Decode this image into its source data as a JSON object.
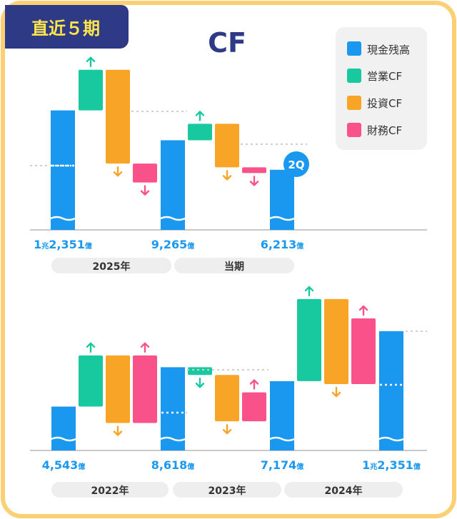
{
  "badge": "直近５期",
  "title": "CF",
  "legend": [
    {
      "label": "現金残高",
      "color": "#1a98f0"
    },
    {
      "label": "営業CF",
      "color": "#18c9a0"
    },
    {
      "label": "投資CF",
      "color": "#f8a427"
    },
    {
      "label": "財務CF",
      "color": "#f9528a"
    }
  ],
  "colors": {
    "frame": "#fbcf74",
    "badge_bg": "#2e3a86",
    "badge_text": "#ffe74b",
    "title": "#2e3a86",
    "value_text": "#1a98f0",
    "axis": "#c8c8c8",
    "pill_bg": "#eeeeee",
    "pill_text": "#333333",
    "legend_bg": "#f1f1f1"
  },
  "chart_data": [
    {
      "type": "waterfall",
      "title": "",
      "unit": "億",
      "quarter_tag": "2Q",
      "steps": [
        {
          "kind": "cash",
          "label": "1兆2,351億",
          "value": 12351
        },
        {
          "kind": "operating",
          "delta": 4200
        },
        {
          "kind": "investing",
          "delta": -9700
        },
        {
          "kind": "financing",
          "delta": -1950
        },
        {
          "kind": "cash",
          "label": "9,265億",
          "value": 9265
        },
        {
          "kind": "operating",
          "delta": 1700
        },
        {
          "kind": "investing",
          "delta": -4500
        },
        {
          "kind": "financing",
          "delta": -500
        },
        {
          "kind": "cash",
          "label": "6,213億",
          "value": 6213
        }
      ],
      "periods": [
        {
          "label": "2025年"
        },
        {
          "label": "当期"
        }
      ]
    },
    {
      "type": "waterfall",
      "title": "",
      "unit": "億",
      "steps": [
        {
          "kind": "cash",
          "label": "4,543億",
          "value": 4543
        },
        {
          "kind": "operating",
          "delta": 5300
        },
        {
          "kind": "investing",
          "delta": -7000
        },
        {
          "kind": "financing",
          "delta": 7000
        },
        {
          "kind": "cash",
          "label": "8,618億",
          "value": 8618
        },
        {
          "kind": "operating",
          "delta": -800
        },
        {
          "kind": "investing",
          "delta": -4800
        },
        {
          "kind": "financing",
          "delta": 3000
        },
        {
          "kind": "cash",
          "label": "7,174億",
          "value": 7174
        },
        {
          "kind": "operating",
          "delta": 8500
        },
        {
          "kind": "investing",
          "delta": -8800
        },
        {
          "kind": "financing",
          "delta": 6800
        },
        {
          "kind": "cash",
          "label": "1兆2,351億",
          "value": 12351
        }
      ],
      "periods": [
        {
          "label": "2022年"
        },
        {
          "label": "2023年"
        },
        {
          "label": "2024年"
        }
      ]
    }
  ]
}
